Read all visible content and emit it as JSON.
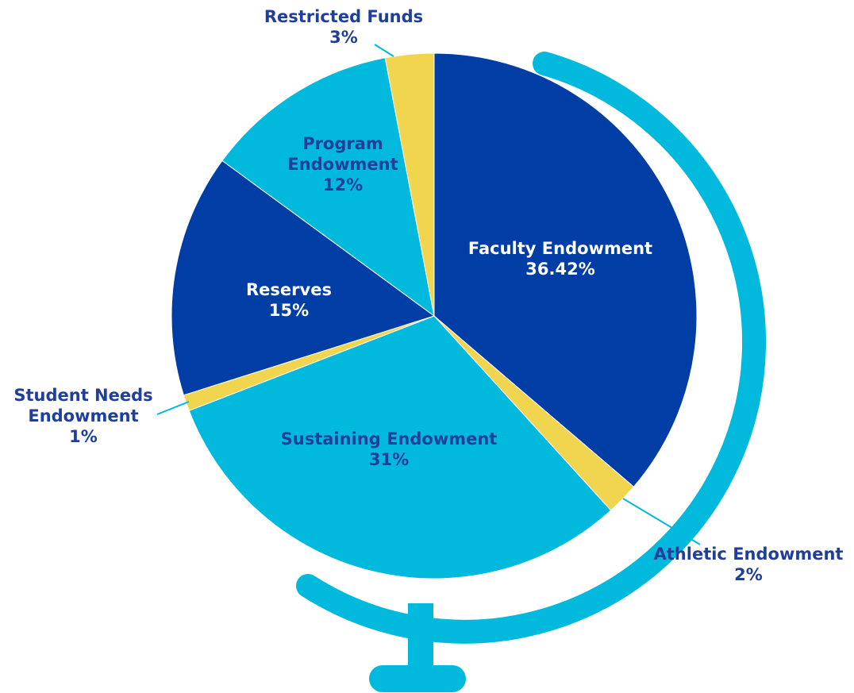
{
  "chart_data": {
    "type": "pie",
    "categories": [
      "Faculty Endowment",
      "Athletic Endowment",
      "Sustaining Endowment",
      "Student Needs Endowment",
      "Reserves",
      "Program Endowment",
      "Restricted Funds"
    ],
    "values": [
      36.42,
      2,
      31,
      1,
      15,
      12,
      3
    ],
    "value_labels": [
      "36.42%",
      "2%",
      "31%",
      "1%",
      "15%",
      "12%",
      "3%"
    ],
    "colors": [
      "#003da5",
      "#f2d54e",
      "#00b9dd",
      "#f2d54e",
      "#003da5",
      "#00b9dd",
      "#f2d54e"
    ]
  }
}
